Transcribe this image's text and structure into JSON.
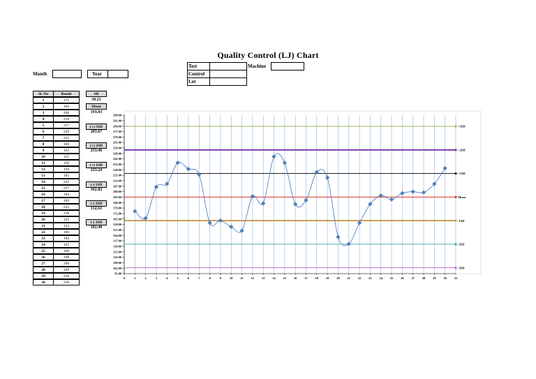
{
  "header": {
    "title": "Quality Control (LJ) Chart",
    "month_label": "Month",
    "year_label": "Year",
    "test_label": "Test",
    "machine_label": "Machine",
    "control_label": "Control",
    "lot_label": "Lot"
  },
  "table": {
    "headers": [
      "Sl. No",
      "Result"
    ],
    "rows": [
      [
        "1",
        "175"
      ],
      [
        "2",
        "166"
      ],
      [
        "3",
        "206"
      ],
      [
        "4",
        "210"
      ],
      [
        "5",
        "237"
      ],
      [
        "6",
        "229"
      ],
      [
        "7",
        "222"
      ],
      [
        "8",
        "160"
      ],
      [
        "9",
        "163"
      ],
      [
        "10",
        "155"
      ],
      [
        "11",
        "150"
      ],
      [
        "12",
        "194"
      ],
      [
        "13",
        "185"
      ],
      [
        "14",
        "245"
      ],
      [
        "15",
        "237"
      ],
      [
        "16",
        "184"
      ],
      [
        "17",
        "189"
      ],
      [
        "18",
        "225"
      ],
      [
        "19",
        "218"
      ],
      [
        "20",
        "142"
      ],
      [
        "21",
        "133"
      ],
      [
        "22",
        "160"
      ],
      [
        "23",
        "184"
      ],
      [
        "24",
        "195"
      ],
      [
        "25",
        "190"
      ],
      [
        "26",
        "198"
      ],
      [
        "27",
        "200"
      ],
      [
        "28",
        "199"
      ],
      [
        "29",
        "210"
      ],
      [
        "30",
        "230"
      ]
    ]
  },
  "stats": {
    "sd_label": "SD",
    "sd_value": "30.21",
    "mean_label": "Mean",
    "mean_value": "193.03",
    "p3sd_label": "(+) 3SD",
    "p3sd_value": "283.67",
    "p2sd_label": "(+) 2SD",
    "p2sd_value": "253.46",
    "p1sd_label": "(+) 1SD",
    "p1sd_value": "223.24",
    "m1sd_label": "(-) 1SD",
    "m1sd_value": "162.82",
    "m2sd_label": "(-) 2SD",
    "m2sd_value": "132.61",
    "m3sd_label": "(-) 3SD",
    "m3sd_value": "102.40"
  },
  "chart_data": {
    "type": "line",
    "title": "",
    "xlabel": "",
    "ylabel": "",
    "x": [
      1,
      2,
      3,
      4,
      5,
      6,
      7,
      8,
      9,
      10,
      11,
      12,
      13,
      14,
      15,
      16,
      17,
      18,
      19,
      20,
      21,
      22,
      23,
      24,
      25,
      26,
      27,
      28,
      29,
      30
    ],
    "xlim": [
      0,
      31
    ],
    "x_ticks": [
      "0",
      "1",
      "2",
      "3",
      "4",
      "5",
      "6",
      "7",
      "8",
      "9",
      "10",
      "11",
      "12",
      "13",
      "14",
      "15",
      "16",
      "17",
      "18",
      "19",
      "20",
      "21",
      "22",
      "23",
      "24",
      "25",
      "26",
      "27",
      "28",
      "29",
      "30",
      "31"
    ],
    "ylim": [
      95,
      298
    ],
    "y_ticks": [
      "298.00",
      "291.00",
      "284.00",
      "277.00",
      "270.00",
      "263.00",
      "256.00",
      "249.00",
      "242.00",
      "235.00",
      "228.00",
      "221.00",
      "214.00",
      "207.00",
      "200.00",
      "193.00",
      "186.00",
      "179.00",
      "172.00",
      "165.00",
      "158.00",
      "151.00",
      "144.00",
      "137.00",
      "130.00",
      "123.00",
      "116.00",
      "109.00",
      "102.00",
      "95.00"
    ],
    "series": [
      {
        "values": [
          175,
          166,
          206,
          210,
          237,
          229,
          222,
          160,
          163,
          155,
          150,
          194,
          185,
          245,
          237,
          184,
          189,
          225,
          218,
          142,
          133,
          160,
          184,
          195,
          190,
          198,
          200,
          199,
          210,
          230
        ],
        "color": "#4472c4"
      }
    ],
    "reference_lines": [
      {
        "label": "+3SD",
        "value": 283.67,
        "color": "#8fae4c"
      },
      {
        "label": "+2SD",
        "value": 253.46,
        "color": "#7030a0"
      },
      {
        "label": "+1SD",
        "value": 223.24,
        "color": "#000000"
      },
      {
        "label": "Mean",
        "value": 193.03,
        "color": "#e03030"
      },
      {
        "label": "-1SD",
        "value": 162.82,
        "color": "#c09040"
      },
      {
        "label": "-2SD",
        "value": 132.61,
        "color": "#3aa0a0"
      },
      {
        "label": "-3SD",
        "value": 102.4,
        "color": "#c060c0"
      }
    ],
    "grid": true,
    "legend": "none"
  }
}
